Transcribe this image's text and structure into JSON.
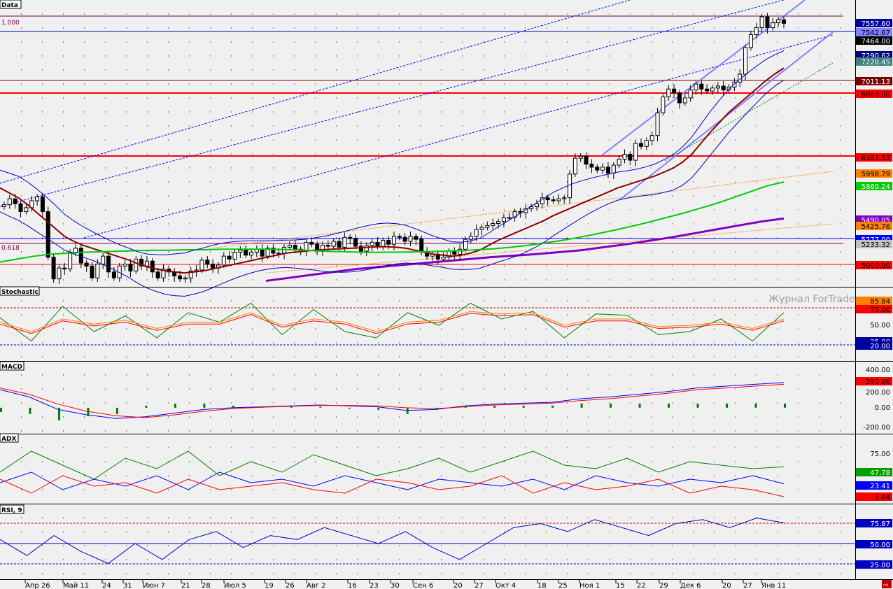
{
  "panes": {
    "data": {
      "title": "Data"
    },
    "stochastic": {
      "title": "Stochastic"
    },
    "macd": {
      "title": "MACD"
    },
    "adx": {
      "title": "ADX"
    },
    "rsi": {
      "title": "RSI, 9"
    }
  },
  "watermark": "Журнал ForTrader",
  "fib_labels": [
    "1.000",
    "0.618"
  ],
  "colors": {
    "grid_bg": "#f0f0f0",
    "candle_up": "#ffffff",
    "candle_down": "#000000",
    "price_red": "#ff0000",
    "ma_dark": "#8b0000",
    "ma_green": "#00cc00",
    "ma_purple": "#8000c0",
    "bands": "#0000c0",
    "channel": "#8080ff"
  },
  "price_labels": [
    {
      "text": "7557.60",
      "bg": "#0000a0",
      "fg": "#ffffff"
    },
    {
      "text": "7542.67",
      "bg": "#8080ff",
      "fg": "#000000"
    },
    {
      "text": "7464.00",
      "bg": "#000000",
      "fg": "#ffffff"
    },
    {
      "text": "7290.62",
      "bg": "#000080",
      "fg": "#ffffff"
    },
    {
      "text": "7220.45",
      "bg": "#408080",
      "fg": "#ffffff"
    },
    {
      "text": "7011.13",
      "bg": "#800000",
      "fg": "#ffffff"
    },
    {
      "text": "6868.00",
      "bg": "#ff0000",
      "fg": "#000000"
    },
    {
      "text": "6182.53",
      "bg": "#ff0000",
      "fg": "#000000"
    },
    {
      "text": "5998.79",
      "bg": "#ff8000",
      "fg": "#000000"
    },
    {
      "text": "5860.24",
      "bg": "#00cc00",
      "fg": "#ffffff"
    },
    {
      "text": "5490.05",
      "bg": "#8000c0",
      "fg": "#ffffff"
    },
    {
      "text": "5425.76",
      "bg": "#ff8000",
      "fg": "#000000"
    },
    {
      "text": "5277.00",
      "bg": "#0000ff",
      "fg": "#ffffff"
    },
    {
      "text": "5233.32",
      "bg": "#c0c0c0",
      "fg": "#000000"
    },
    {
      "text": "5000.00",
      "bg": "#ff0000",
      "fg": "#000000"
    }
  ],
  "stoch_labels": [
    {
      "text": "85.84",
      "bg": "#ff8000",
      "fg": "#000000"
    },
    {
      "text": "75.00",
      "bg": "#ff0000",
      "fg": "#000000"
    },
    {
      "text": "50.00",
      "bg": "",
      "fg": "#000000"
    },
    {
      "text": "25.00",
      "bg": "#0000a0",
      "fg": "#ffffff"
    },
    {
      "text": "20.00",
      "bg": "#0000a0",
      "fg": "#ffffff"
    }
  ],
  "macd_labels": [
    {
      "text": "400.00",
      "bg": "",
      "fg": "#000000"
    },
    {
      "text": "280.06",
      "bg": "#ff0000",
      "fg": "#000000"
    },
    {
      "text": "200.00",
      "bg": "",
      "fg": "#000000"
    },
    {
      "text": "0.00",
      "bg": "",
      "fg": "#000000"
    },
    {
      "text": "-200.00",
      "bg": "",
      "fg": "#000000"
    }
  ],
  "adx_labels": [
    {
      "text": "75.00",
      "bg": "",
      "fg": "#000000"
    },
    {
      "text": "47.78",
      "bg": "#00a000",
      "fg": "#ffffff"
    },
    {
      "text": "23.41",
      "bg": "#0000ff",
      "fg": "#ffffff"
    },
    {
      "text": "5.04",
      "bg": "#ff0000",
      "fg": "#000000"
    }
  ],
  "rsi_labels": [
    {
      "text": "75.87",
      "bg": "#0000c0",
      "fg": "#ffffff"
    },
    {
      "text": "50.00",
      "bg": "#0000c0",
      "fg": "#ffffff"
    },
    {
      "text": "25.00",
      "bg": "#0000c0",
      "fg": "#ffffff"
    }
  ],
  "chart_data": {
    "type": "line",
    "title": "",
    "x_ticks": [
      "Апр 26",
      "Май 11",
      "24",
      "31",
      "Июн 7",
      "21",
      "28",
      "Июл 5",
      "19",
      "26",
      "Авг 2",
      "16",
      "23",
      "30",
      "Сен 6",
      "20",
      "27",
      "Окт 4",
      "18",
      "25",
      "Ноя 1",
      "15",
      "22",
      "29",
      "Дек 6",
      "20",
      "27",
      "Янв 11"
    ],
    "price_close": [
      5630,
      5690,
      5640,
      5560,
      5600,
      5670,
      5710,
      5560,
      5100,
      4880,
      4990,
      4980,
      5150,
      5190,
      5040,
      5010,
      4890,
      5030,
      5110,
      4950,
      4890,
      5010,
      5030,
      4960,
      5080,
      5010,
      5060,
      4950,
      4890,
      4980,
      4950,
      4910,
      4880,
      4890,
      4960,
      4970,
      5070,
      5030,
      4990,
      5020,
      5110,
      5080,
      5150,
      5170,
      5120,
      5150,
      5180,
      5110,
      5190,
      5140,
      5140,
      5200,
      5220,
      5180,
      5170,
      5250,
      5230,
      5160,
      5220,
      5210,
      5260,
      5200,
      5300,
      5290,
      5210,
      5160,
      5220,
      5250,
      5210,
      5270,
      5230,
      5310,
      5300,
      5260,
      5310,
      5280,
      5150,
      5110,
      5130,
      5080,
      5100,
      5160,
      5130,
      5180,
      5280,
      5310,
      5380,
      5400,
      5420,
      5440,
      5460,
      5500,
      5500,
      5560,
      5550,
      5590,
      5610,
      5640,
      5700,
      5680,
      5670,
      5690,
      5700,
      5940,
      6100,
      6120,
      6040,
      6010,
      5980,
      6010,
      5950,
      6030,
      6090,
      6140,
      6080,
      6250,
      6220,
      6280,
      6330,
      6560,
      6720,
      6800,
      6760,
      6660,
      6710,
      6790,
      6850,
      6800,
      6780,
      6810,
      6830,
      6790,
      6820,
      6870,
      6950,
      7220,
      7350,
      7420,
      7530,
      7420,
      7470,
      7500,
      7464
    ],
    "ma_dark": [
      5800,
      5750,
      5700,
      5630,
      5550,
      5470,
      5390,
      5310,
      5260,
      5220,
      5190,
      5160,
      5130,
      5100,
      5070,
      5030,
      5000,
      4980,
      4960,
      4950,
      4940,
      4950,
      4960,
      4980,
      5000,
      5020,
      5040,
      5060,
      5080,
      5100,
      5120,
      5140,
      5150,
      5160,
      5170,
      5175,
      5180,
      5185,
      5190,
      5195,
      5200,
      5205,
      5205,
      5200,
      5190,
      5170,
      5150,
      5130,
      5120,
      5110,
      5120,
      5140,
      5170,
      5220,
      5270,
      5310,
      5350,
      5390,
      5430,
      5470,
      5520,
      5560,
      5600,
      5640,
      5680,
      5720,
      5760,
      5800,
      5830,
      5860,
      5890,
      5920,
      5960,
      6000,
      6060,
      6140,
      6250,
      6360,
      6460,
      6560,
      6640,
      6720,
      6800,
      6880,
      6950,
      7011
    ],
    "ma_green": [
      5050,
      5080,
      5110,
      5130,
      5140,
      5150,
      5155,
      5160,
      5165,
      5170,
      5170,
      5175,
      5175,
      5180,
      5180,
      5180,
      5180,
      5175,
      5170,
      5160,
      5155,
      5150,
      5148,
      5150,
      5152,
      5156,
      5160,
      5165,
      5175,
      5185,
      5200,
      5220,
      5245,
      5270,
      5300,
      5335,
      5370,
      5410,
      5450,
      5495,
      5540,
      5590,
      5640,
      5700,
      5760,
      5820,
      5860
    ],
    "ma_purple": [
      4860,
      4890,
      4920,
      4950,
      4980,
      5000,
      5020,
      5040,
      5060,
      5080,
      5100,
      5115,
      5130,
      5150,
      5170,
      5200,
      5230,
      5265,
      5300,
      5340,
      5380,
      5420,
      5460,
      5490
    ],
    "stochastic": {
      "k": [
        62,
        25,
        80,
        40,
        65,
        30,
        70,
        55,
        85,
        35,
        75,
        40,
        30,
        70,
        50,
        85,
        60,
        72,
        30,
        68,
        66,
        35,
        40,
        60,
        25,
        70
      ],
      "d": [
        55,
        40,
        60,
        52,
        58,
        45,
        55,
        55,
        70,
        50,
        60,
        55,
        40,
        55,
        58,
        72,
        68,
        70,
        50,
        60,
        60,
        48,
        50,
        55,
        45,
        60
      ],
      "levels": [
        75,
        50,
        25,
        20
      ]
    },
    "macd": {
      "main": [
        200,
        120,
        -20,
        -80,
        -120,
        -100,
        -60,
        -20,
        0,
        10,
        20,
        30,
        20,
        10,
        -30,
        -20,
        20,
        40,
        50,
        60,
        100,
        120,
        150,
        180,
        220,
        240,
        260,
        280
      ],
      "signal": [
        220,
        150,
        40,
        -40,
        -90,
        -110,
        -80,
        -40,
        -10,
        5,
        15,
        25,
        25,
        20,
        0,
        -10,
        10,
        30,
        40,
        50,
        80,
        100,
        130,
        160,
        200,
        220,
        240,
        260
      ]
    },
    "adx": {
      "adx": [
        40,
        70,
        50,
        30,
        60,
        45,
        70,
        35,
        55,
        40,
        65,
        50,
        35,
        45,
        60,
        40,
        55,
        70,
        50,
        45,
        60,
        40,
        55,
        50,
        45,
        47.78
      ],
      "plus_di": [
        25,
        40,
        15,
        30,
        20,
        35,
        15,
        40,
        25,
        30,
        20,
        35,
        25,
        15,
        30,
        25,
        20,
        30,
        15,
        35,
        25,
        20,
        30,
        25,
        35,
        23.41
      ],
      "minus_di": [
        30,
        10,
        35,
        20,
        25,
        10,
        30,
        15,
        20,
        25,
        15,
        10,
        30,
        25,
        15,
        20,
        35,
        10,
        25,
        15,
        20,
        30,
        10,
        20,
        15,
        5.04
      ]
    },
    "rsi": {
      "values": [
        55,
        35,
        60,
        40,
        25,
        50,
        30,
        55,
        65,
        45,
        60,
        55,
        70,
        60,
        50,
        65,
        45,
        30,
        50,
        70,
        75,
        65,
        80,
        70,
        60,
        75,
        80,
        70,
        82,
        75.87
      ],
      "levels": [
        75,
        50,
        25
      ]
    }
  }
}
